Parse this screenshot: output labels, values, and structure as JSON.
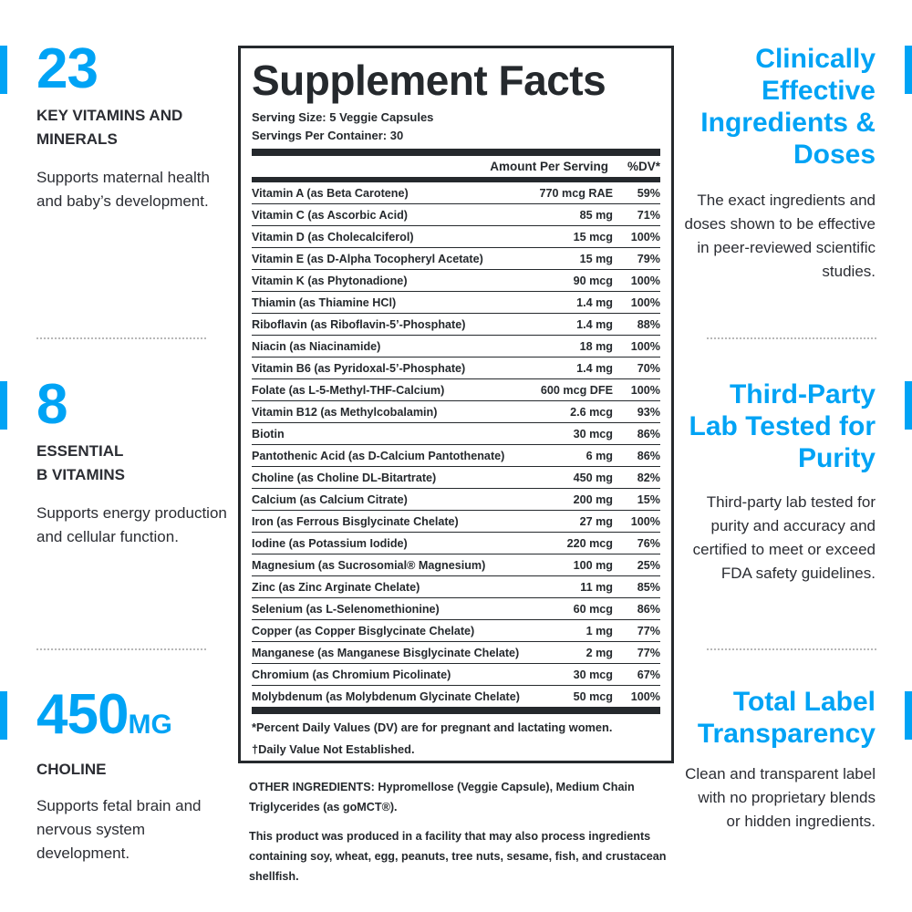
{
  "colors": {
    "accent": "#00a3f5",
    "text": "#2b2d33",
    "panel_border": "#25292d"
  },
  "left": [
    {
      "big": "23",
      "unit": "",
      "label_lines": [
        "KEY VITAMINS AND",
        "MINERALS"
      ],
      "desc": "Supports maternal health and baby’s development."
    },
    {
      "big": "8",
      "unit": "",
      "label_lines": [
        "ESSENTIAL",
        "B VITAMINS"
      ],
      "desc": "Supports energy production and cellular function."
    },
    {
      "big": "450",
      "unit": "MG",
      "label_lines": [
        "CHOLINE"
      ],
      "desc": "Supports fetal brain and nervous system development."
    }
  ],
  "right": [
    {
      "title": "Clinically Effective Ingredients & Doses",
      "desc": "The exact ingredients and doses shown to be effective in peer-reviewed scientific studies."
    },
    {
      "title": "Third-Party Lab Tested for Purity",
      "desc": "Third-party lab tested for purity and accuracy and certified to meet or exceed FDA safety guidelines."
    },
    {
      "title": "Total Label Transparency",
      "desc": "Clean and transparent label with no proprietary blends or hidden ingredients."
    }
  ],
  "facts": {
    "title": "Supplement Facts",
    "serving_size": "Serving Size: 5 Veggie Capsules",
    "servings_per_container": "Servings Per Container: 30",
    "header_amount": "Amount Per Serving",
    "header_dv": "%DV*",
    "rows": [
      {
        "name": "Vitamin A (as Beta Carotene)",
        "amount": "770 mcg RAE",
        "dv": "59%"
      },
      {
        "name": "Vitamin C (as Ascorbic Acid)",
        "amount": "85 mg",
        "dv": "71%"
      },
      {
        "name": "Vitamin D (as Cholecalciferol)",
        "amount": "15 mcg",
        "dv": "100%"
      },
      {
        "name": "Vitamin E (as D-Alpha Tocopheryl Acetate)",
        "amount": "15 mg",
        "dv": "79%"
      },
      {
        "name": "Vitamin K (as Phytonadione)",
        "amount": "90 mcg",
        "dv": "100%"
      },
      {
        "name": "Thiamin (as Thiamine HCl)",
        "amount": "1.4 mg",
        "dv": "100%"
      },
      {
        "name": "Riboflavin (as Riboflavin-5’-Phosphate)",
        "amount": "1.4 mg",
        "dv": "88%"
      },
      {
        "name": "Niacin (as Niacinamide)",
        "amount": "18 mg",
        "dv": "100%"
      },
      {
        "name": "Vitamin B6 (as Pyridoxal-5’-Phosphate)",
        "amount": "1.4 mg",
        "dv": "70%"
      },
      {
        "name": "Folate (as L-5-Methyl-THF-Calcium)",
        "amount": "600 mcg DFE",
        "dv": "100%"
      },
      {
        "name": "Vitamin B12 (as Methylcobalamin)",
        "amount": "2.6 mcg",
        "dv": "93%"
      },
      {
        "name": "Biotin",
        "amount": "30 mcg",
        "dv": "86%"
      },
      {
        "name": "Pantothenic Acid (as D-Calcium Pantothenate)",
        "amount": "6 mg",
        "dv": "86%"
      },
      {
        "name": "Choline (as Choline DL-Bitartrate)",
        "amount": "450 mg",
        "dv": "82%"
      },
      {
        "name": "Calcium (as Calcium Citrate)",
        "amount": "200 mg",
        "dv": "15%"
      },
      {
        "name": "Iron (as Ferrous Bisglycinate Chelate)",
        "amount": "27 mg",
        "dv": "100%"
      },
      {
        "name": "Iodine (as Potassium Iodide)",
        "amount": "220 mcg",
        "dv": "76%"
      },
      {
        "name": "Magnesium (as Sucrosomial® Magnesium)",
        "amount": "100 mg",
        "dv": "25%"
      },
      {
        "name": "Zinc (as Zinc Arginate Chelate)",
        "amount": "11 mg",
        "dv": "85%"
      },
      {
        "name": "Selenium (as L-Selenomethionine)",
        "amount": "60 mcg",
        "dv": "86%"
      },
      {
        "name": "Copper (as Copper Bisglycinate Chelate)",
        "amount": "1 mg",
        "dv": "77%"
      },
      {
        "name": "Manganese (as Manganese Bisglycinate Chelate)",
        "amount": "2 mg",
        "dv": "77%"
      },
      {
        "name": "Chromium (as Chromium Picolinate)",
        "amount": "30 mcg",
        "dv": "67%"
      },
      {
        "name": "Molybdenum (as Molybdenum Glycinate Chelate)",
        "amount": "50 mcg",
        "dv": "100%"
      }
    ],
    "note_dv": "*Percent Daily Values (DV) are for pregnant and lactating women.",
    "note_dagger": "†Daily Value Not Established."
  },
  "other": {
    "label": "OTHER INGREDIENTS:",
    "text": " Hypromellose (Veggie Capsule), Medium Chain Triglycerides (as goMCT®).",
    "allergen": "This product was produced in a facility that may also process ingredients containing soy, wheat, egg, peanuts, tree nuts, sesame, fish, and crustacean shellfish."
  }
}
